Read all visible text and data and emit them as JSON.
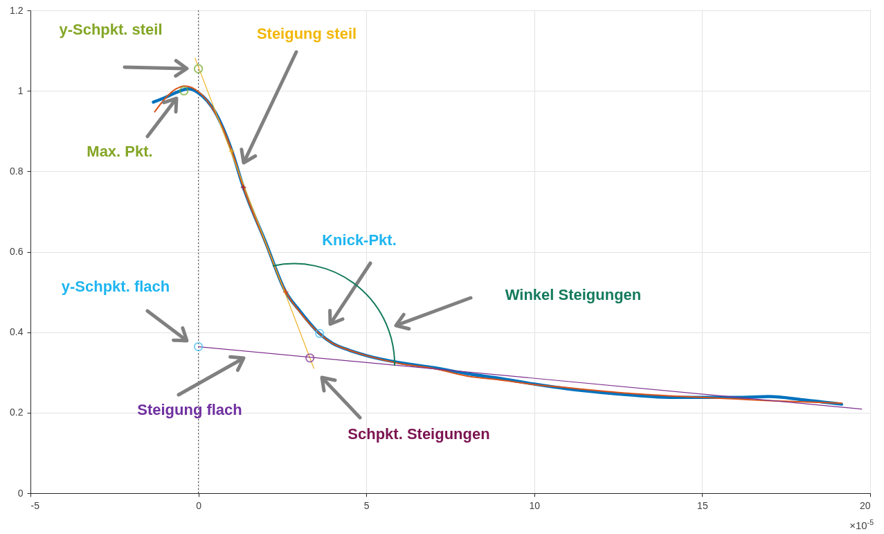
{
  "chart_data": {
    "type": "line",
    "xlim": [
      -5,
      20
    ],
    "xticks": [
      -5,
      0,
      5,
      10,
      15,
      20
    ],
    "ylim": [
      0,
      1.2
    ],
    "yticks": [
      0,
      0.2,
      0.4,
      0.6,
      0.8,
      1,
      1.2
    ],
    "grid": true,
    "series": [
      {
        "color": "#0072bd",
        "x": [
          -1.34,
          -1.0,
          -0.6,
          -0.3,
          0,
          0.5,
          1.0,
          1.34,
          2.0,
          2.6,
          3.0,
          3.6,
          4.0,
          4.5,
          5,
          6,
          7,
          8,
          9,
          10,
          11,
          12,
          13,
          14,
          15,
          16,
          17,
          18,
          19.15
        ],
        "values": [
          0.972,
          0.983,
          0.998,
          1.005,
          0.995,
          0.947,
          0.85,
          0.76,
          0.624,
          0.5,
          0.455,
          0.397,
          0.372,
          0.355,
          0.342,
          0.324,
          0.312,
          0.297,
          0.285,
          0.271,
          0.259,
          0.25,
          0.243,
          0.238,
          0.238,
          0.238,
          0.24,
          0.232,
          0.221
        ]
      },
      {
        "color": "#d95319",
        "x": [
          -1.3,
          -1.0,
          -0.7,
          -0.4,
          0,
          0.5,
          1.0,
          1.34,
          2.0,
          2.6,
          3.0,
          3.6,
          4,
          4.5,
          5,
          6,
          7,
          8,
          9,
          10,
          11,
          12,
          13,
          14,
          15,
          16,
          17,
          18,
          19.15
        ],
        "values": [
          0.948,
          0.98,
          1.003,
          1.012,
          0.998,
          0.945,
          0.85,
          0.76,
          0.622,
          0.5,
          0.452,
          0.397,
          0.372,
          0.355,
          0.342,
          0.322,
          0.31,
          0.291,
          0.281,
          0.27,
          0.262,
          0.254,
          0.247,
          0.242,
          0.238,
          0.234,
          0.23,
          0.227,
          0.224
        ]
      },
      {
        "color": "#edb120",
        "x": [
          -0.1,
          3.44
        ],
        "values": [
          1.081,
          0.31
        ]
      },
      {
        "color": "#7e2f8e",
        "x": [
          0,
          19.75
        ],
        "values": [
          0.364,
          0.209
        ]
      },
      {
        "type": "scatter",
        "marker": "circle",
        "color": "#77ac30",
        "x": [
          0,
          -0.43
        ],
        "values": [
          1.055,
          1.0
        ]
      },
      {
        "type": "scatter",
        "marker": "circle",
        "color": "#4dbeee",
        "x": [
          3.61,
          0
        ],
        "values": [
          0.397,
          0.364
        ]
      },
      {
        "type": "scatter",
        "marker": "circle",
        "color": "#7e2f8e",
        "x": [
          3.32
        ],
        "values": [
          0.336
        ]
      },
      {
        "type": "scatter",
        "marker": "cross",
        "color": "#edb120",
        "x": [
          0.99
        ],
        "values": [
          0.85
        ]
      },
      {
        "type": "scatter",
        "marker": "cross",
        "color": "#a2142f",
        "x": [
          1.34
        ],
        "values": [
          0.76
        ]
      },
      {
        "type": "scatter",
        "marker": "cross",
        "color": "#d95319",
        "x": [
          2.6
        ],
        "values": [
          0.5
        ]
      }
    ],
    "ref_lines": [
      {
        "axis": "x",
        "value": 0,
        "color": "#404040",
        "line_style": "dotted"
      }
    ],
    "annotations": [
      "y-Schpkt. steil",
      "Max. Pkt.",
      "Steigung steil",
      "Knick-Pkt.",
      "Winkel Steigungen",
      "y-Schpkt. flach",
      "Steigung flach",
      "Schpkt. Steigungen",
      "×10$^{-5}$"
    ]
  }
}
